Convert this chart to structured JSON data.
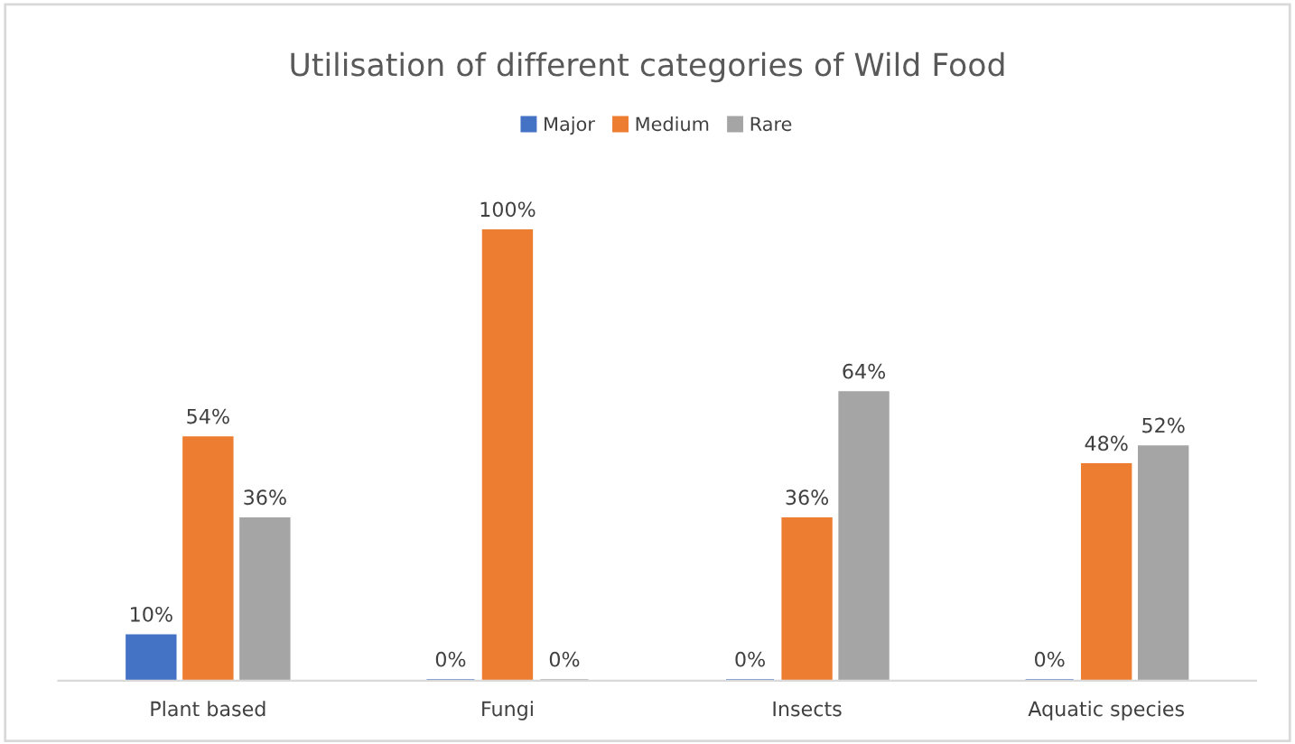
{
  "chart_data": {
    "type": "bar",
    "title": "Utilisation of different categories of Wild Food",
    "categories": [
      "Plant based",
      "Fungi",
      "Insects",
      "Aquatic species"
    ],
    "series": [
      {
        "name": "Major",
        "color": "#4472c4",
        "values": [
          10,
          0,
          0,
          0
        ],
        "value_labels": [
          "10%",
          "0%",
          "0%",
          "0%"
        ]
      },
      {
        "name": "Medium",
        "color": "#ed7d31",
        "values": [
          54,
          100,
          36,
          48
        ],
        "value_labels": [
          "54%",
          "100%",
          "36%",
          "48%"
        ]
      },
      {
        "name": "Rare",
        "color": "#a5a5a5",
        "values": [
          36,
          0,
          64,
          52
        ],
        "value_labels": [
          "36%",
          "0%",
          "64%",
          "52%"
        ]
      }
    ],
    "legend": "top"
  }
}
